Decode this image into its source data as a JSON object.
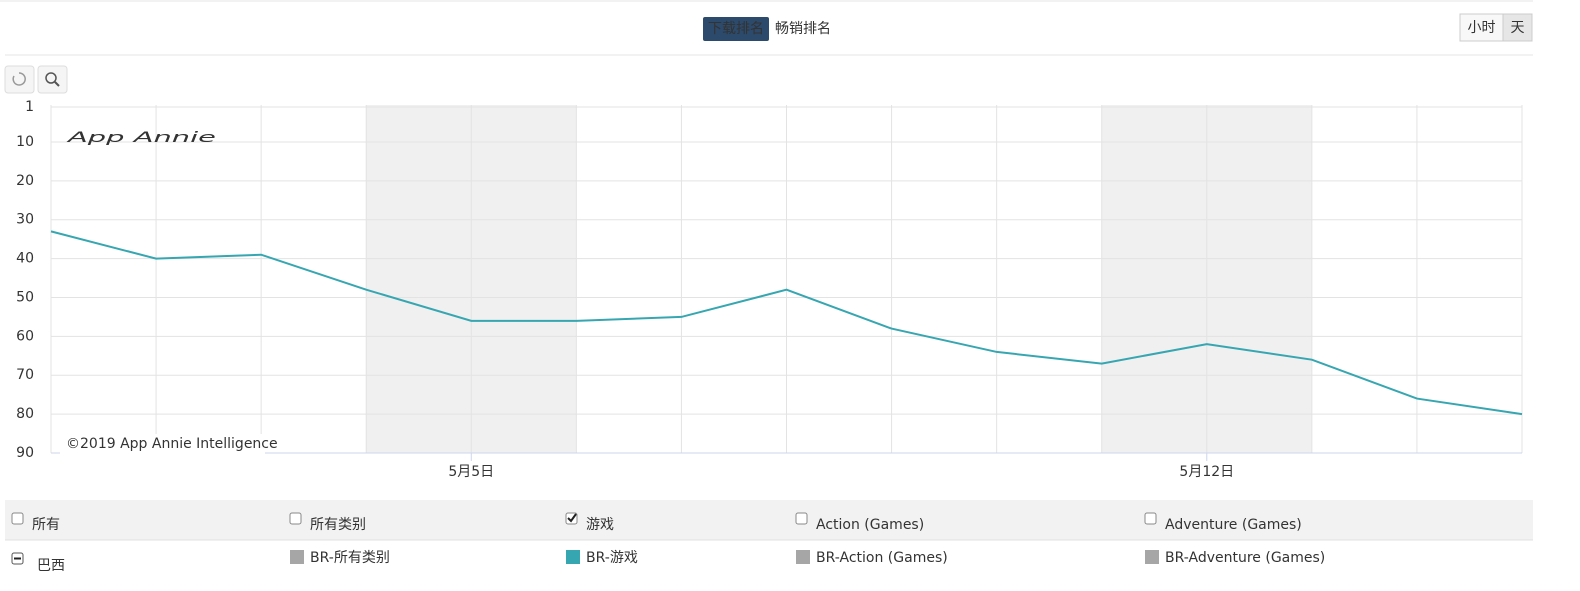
{
  "tabs": [
    {
      "label": "下载排名",
      "active": true
    },
    {
      "label": "畅销排名",
      "active": false
    }
  ],
  "granularity": [
    {
      "label": "小时",
      "active": false
    },
    {
      "label": "天",
      "active": true
    }
  ],
  "chart_data": {
    "type": "line",
    "categories": [
      null,
      null,
      null,
      null,
      "5月5日",
      null,
      null,
      null,
      null,
      null,
      null,
      "5月12日",
      null,
      null,
      null
    ],
    "series": [
      {
        "name": "BR-游戏",
        "color": "#36a6b1",
        "values": [
          33,
          40,
          39,
          48,
          56,
          56,
          55,
          48,
          58,
          64,
          67,
          62,
          66,
          76,
          80
        ]
      }
    ],
    "ylim": [
      1,
      90
    ],
    "yticks": [
      1,
      10,
      20,
      30,
      40,
      50,
      60,
      70,
      80,
      90
    ],
    "y_inverted": true,
    "grid": true,
    "watermark": "App Annie",
    "copyright": "©2019 App Annie Intelligence"
  },
  "filters": [
    {
      "label": "所有",
      "checked": false
    },
    {
      "label": "所有类别",
      "checked": false
    },
    {
      "label": "游戏",
      "checked": true
    },
    {
      "label": "Action (Games)",
      "checked": false
    },
    {
      "label": "Adventure (Games)",
      "checked": false
    }
  ],
  "region": "巴西",
  "other_series": [
    {
      "name": "BR-所有类别",
      "color": "#a6a6a6"
    },
    {
      "name": "BR-Action (Games)",
      "color": "#a6a6a6"
    },
    {
      "name": "BR-Adventure (Games)",
      "color": "#a6a6a6"
    }
  ]
}
